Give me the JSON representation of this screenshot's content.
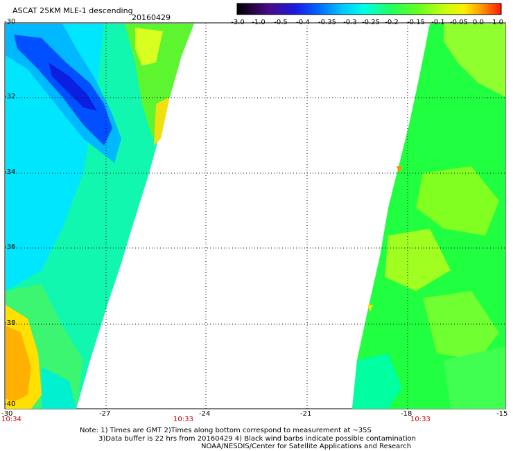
{
  "header": {
    "title": "ASCAT 25KM MLE-1 descending",
    "date": "20160429"
  },
  "colorbar": {
    "labels": [
      "-3.0",
      "-1.0",
      "-0.5",
      "-0.4",
      "-0.35",
      "-0.3",
      "-0.25",
      "-0.2",
      "-0.15",
      "-0.1",
      "-0.05",
      "0.0",
      "1.0"
    ],
    "colors": [
      "#000000",
      "#5a0f9a",
      "#2b1fd0",
      "#0030ff",
      "#0a8cff",
      "#00e0ff",
      "#00ffd0",
      "#20ff40",
      "#80ff20",
      "#d8ff10",
      "#ffe000",
      "#ff9a00",
      "#ff2000"
    ]
  },
  "axes": {
    "y_labels": [
      "-30",
      "-32",
      "-34",
      "-36",
      "-38",
      "-40"
    ],
    "x_labels": [
      "-30",
      "-27",
      "-24",
      "-21",
      "-18",
      "-15"
    ]
  },
  "time_labels": [
    "10:34",
    "10:33",
    "10:33"
  ],
  "notes": [
    "Note: 1) Times are GMT 2)Times along bottom correspond to measurement at ~35S",
    "3)Data buffer is 22 hrs from 20160429 4) Black wind barbs indicate possible contamination",
    "NOAA/NESDIS/Center for Satellite Applications and Research"
  ]
}
